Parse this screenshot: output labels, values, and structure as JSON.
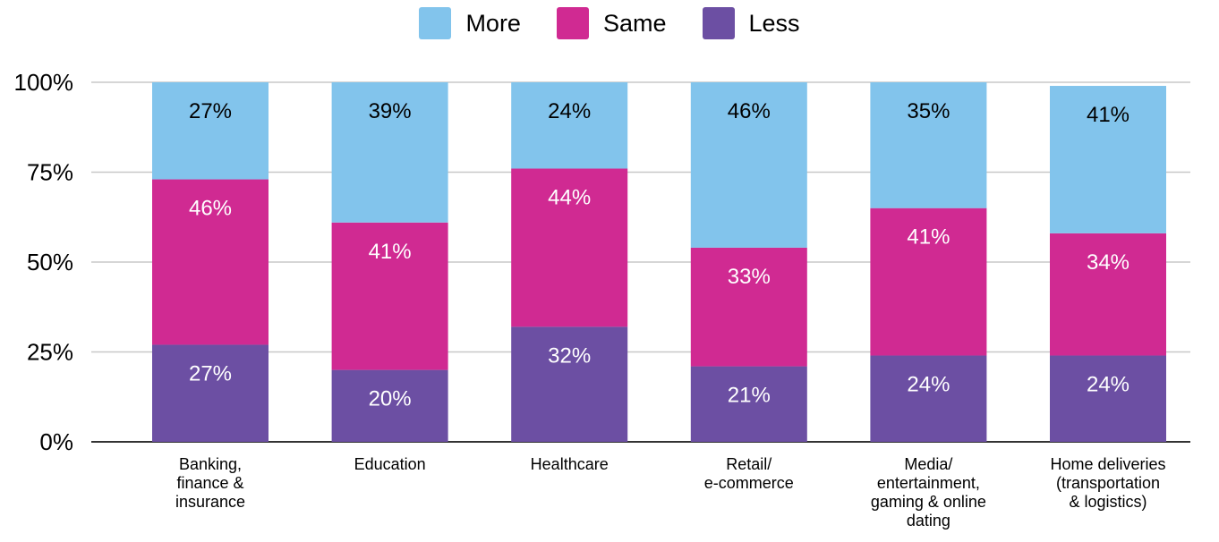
{
  "chart_data": {
    "type": "bar",
    "stacked": true,
    "categories": [
      [
        "Banking,",
        "finance &",
        "insurance"
      ],
      [
        "Education"
      ],
      [
        "Healthcare"
      ],
      [
        "Retail/",
        "e-commerce"
      ],
      [
        "Media/",
        "entertainment,",
        "gaming & online",
        "dating"
      ],
      [
        "Home deliveries",
        "(transportation",
        "& logistics)"
      ]
    ],
    "series": [
      {
        "name": "Less",
        "color": "#6C4FA3",
        "values": [
          27,
          20,
          32,
          21,
          24,
          24
        ]
      },
      {
        "name": "Same",
        "color": "#D02A92",
        "values": [
          46,
          41,
          44,
          33,
          41,
          34
        ]
      },
      {
        "name": "More",
        "color": "#82C4EC",
        "values": [
          27,
          39,
          24,
          46,
          35,
          41
        ]
      }
    ],
    "legend_order": [
      "More",
      "Same",
      "Less"
    ],
    "value_suffix": "%",
    "yticks": [
      "0%",
      "25%",
      "50%",
      "75%",
      "100%"
    ],
    "ylim": [
      0,
      100
    ],
    "grid": true,
    "legend_position": "top-center",
    "title": "",
    "xlabel": "",
    "ylabel": ""
  }
}
